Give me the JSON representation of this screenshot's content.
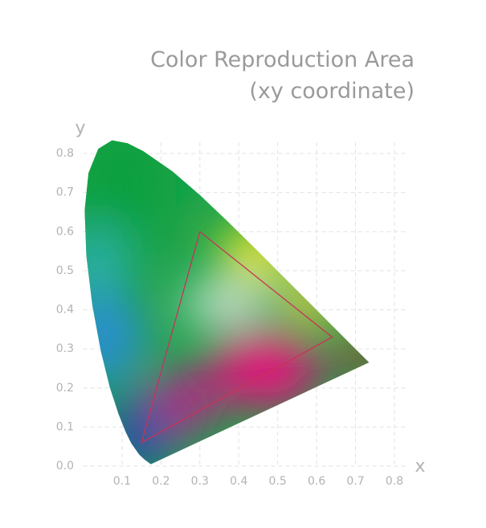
{
  "chart_data": {
    "type": "chromaticity",
    "title": [
      "Color Reproduction Area",
      "(xy coordinate)"
    ],
    "x_label": "x",
    "y_label": "y",
    "xlim": [
      0,
      0.8
    ],
    "ylim": [
      0,
      0.8
    ],
    "xticks": [
      0.1,
      0.2,
      0.3,
      0.4,
      0.5,
      0.6,
      0.7,
      0.8
    ],
    "yticks": [
      {
        "value": 0,
        "label": "0.0"
      },
      0.1,
      0.2,
      0.3,
      0.4,
      0.5,
      0.6,
      0.7,
      0.8
    ],
    "grid": true,
    "series": [
      {
        "name": "spectral locus",
        "color": "#1aa34a",
        "x": [
          0.1741,
          0.1566,
          0.144,
          0.1241,
          0.1096,
          0.0913,
          0.0687,
          0.0454,
          0.0235,
          0.0082,
          0.0039,
          0.0139,
          0.0389,
          0.0743,
          0.1142,
          0.1547,
          0.2296,
          0.3016,
          0.3731,
          0.4441,
          0.5125,
          0.5752,
          0.627,
          0.6915,
          0.7347
        ],
        "y": [
          0.005,
          0.0177,
          0.0297,
          0.0578,
          0.0868,
          0.1327,
          0.2007,
          0.295,
          0.4127,
          0.5384,
          0.6548,
          0.7502,
          0.812,
          0.8338,
          0.8262,
          0.8059,
          0.7543,
          0.6923,
          0.6245,
          0.5547,
          0.4866,
          0.4242,
          0.3725,
          0.3083,
          0.2653
        ]
      },
      {
        "name": "gamut",
        "color": "#c8325a",
        "x": [
          0.64,
          0.3,
          0.15
        ],
        "y": [
          0.33,
          0.6,
          0.06
        ]
      }
    ]
  }
}
